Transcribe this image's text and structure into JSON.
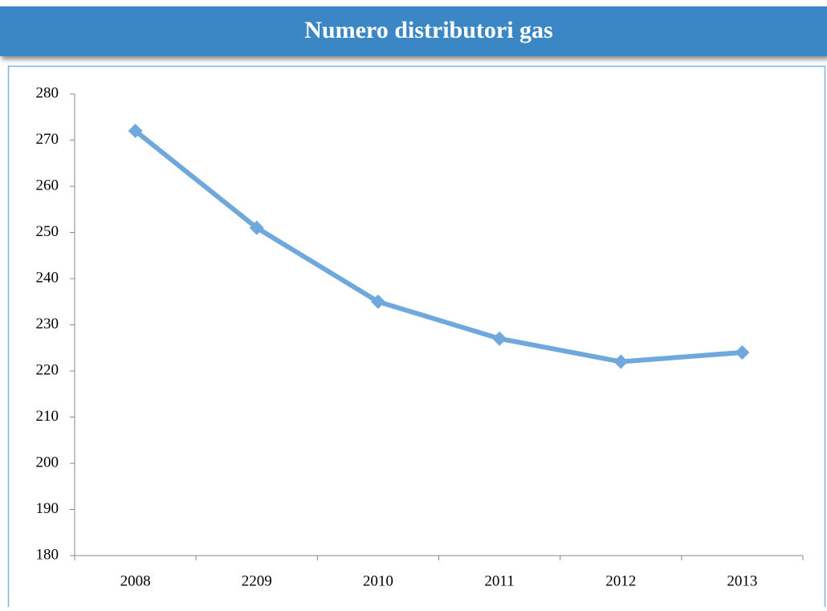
{
  "chart_data": {
    "type": "line",
    "title": "Numero distributori gas",
    "categories": [
      "2008",
      "2209",
      "2010",
      "2011",
      "2012",
      "2013"
    ],
    "values": [
      272,
      251,
      235,
      227,
      222,
      224
    ],
    "color": "#6ea8dc",
    "ylim": [
      180,
      280
    ],
    "yticks": [
      180,
      190,
      200,
      210,
      220,
      230,
      240,
      250,
      260,
      270,
      280
    ],
    "grid": false
  }
}
